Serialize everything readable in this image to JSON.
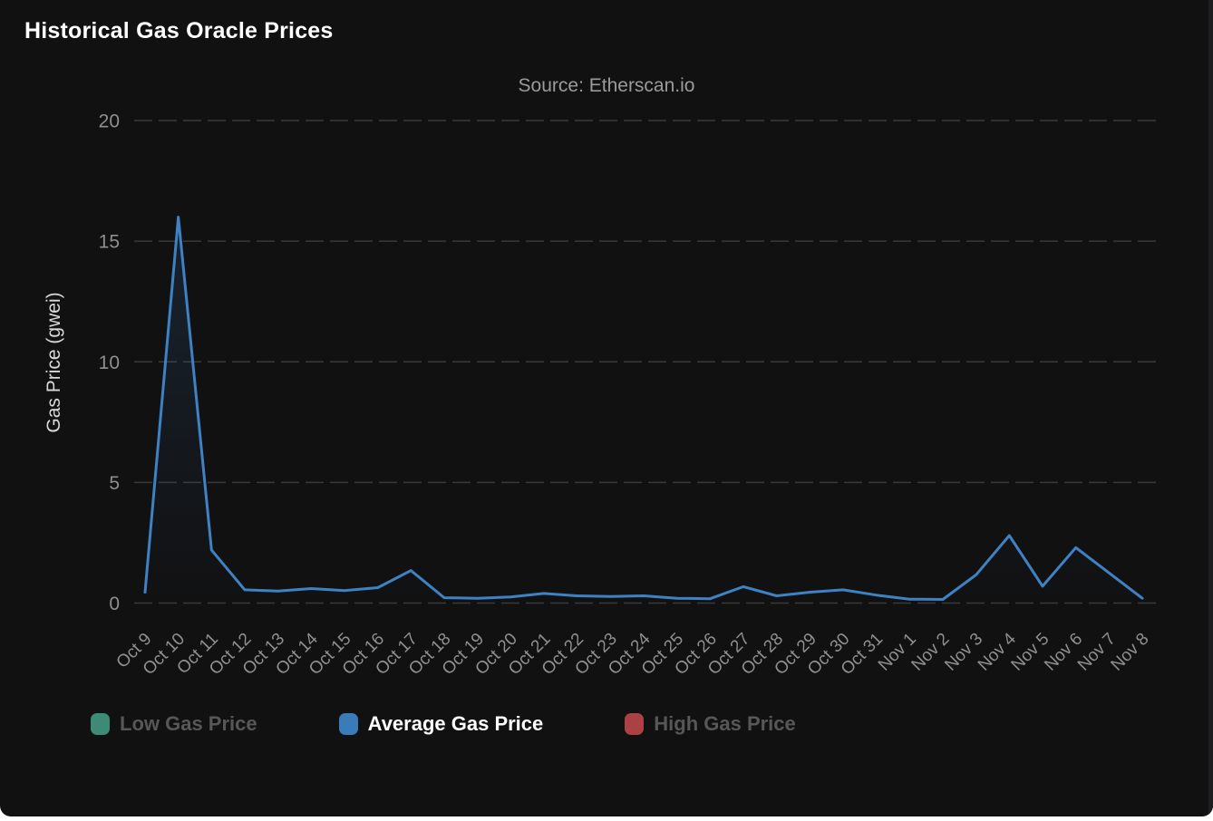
{
  "header": {
    "title": "Historical Gas Oracle Prices",
    "subtitle": "Source: Etherscan.io"
  },
  "legend": {
    "items": [
      {
        "label": "Low Gas Price",
        "color": "#46a187",
        "disabled": true
      },
      {
        "label": "Average Gas Price",
        "color": "#3a7cba",
        "disabled": false
      },
      {
        "label": "High Gas Price",
        "color": "#c84a4e",
        "disabled": true
      }
    ]
  },
  "chart_data": {
    "type": "line",
    "title": "Historical Gas Oracle Prices",
    "subtitle": "Source: Etherscan.io",
    "xlabel": "",
    "ylabel": "Gas Price (gwei)",
    "ylim": [
      0,
      20
    ],
    "yticks": [
      0,
      5,
      10,
      15,
      20
    ],
    "grid": "dashed-horizontal",
    "legend_position": "bottom",
    "categories": [
      "Oct 9",
      "Oct 10",
      "Oct 11",
      "Oct 12",
      "Oct 13",
      "Oct 14",
      "Oct 15",
      "Oct 16",
      "Oct 17",
      "Oct 18",
      "Oct 19",
      "Oct 20",
      "Oct 21",
      "Oct 22",
      "Oct 23",
      "Oct 24",
      "Oct 25",
      "Oct 26",
      "Oct 27",
      "Oct 28",
      "Oct 29",
      "Oct 30",
      "Oct 31",
      "Nov 1",
      "Nov 2",
      "Nov 3",
      "Nov 4",
      "Nov 5",
      "Nov 6",
      "Nov 7",
      "Nov 8"
    ],
    "series": [
      {
        "name": "Low Gas Price",
        "color": "#46a187",
        "visible": false,
        "values": []
      },
      {
        "name": "Average Gas Price",
        "color": "#3e82c4",
        "visible": true,
        "values": [
          0.45,
          16,
          2.2,
          0.55,
          0.5,
          0.6,
          0.52,
          0.64,
          1.35,
          0.22,
          0.2,
          0.25,
          0.4,
          0.3,
          0.27,
          0.3,
          0.2,
          0.18,
          0.68,
          0.3,
          0.45,
          0.55,
          0.33,
          0.16,
          0.15,
          1.17,
          2.8,
          0.7,
          2.3,
          1.25,
          0.2
        ]
      },
      {
        "name": "High Gas Price",
        "color": "#c84a4e",
        "visible": false,
        "values": []
      }
    ]
  },
  "colors": {
    "card_background": "#111112",
    "gridline": "#3a3a3a",
    "y_tick_label": "#8f8f8f",
    "x_tick_label": "#909090",
    "y_axis_title": "#d8d8d8",
    "line": "#3e82c4"
  }
}
